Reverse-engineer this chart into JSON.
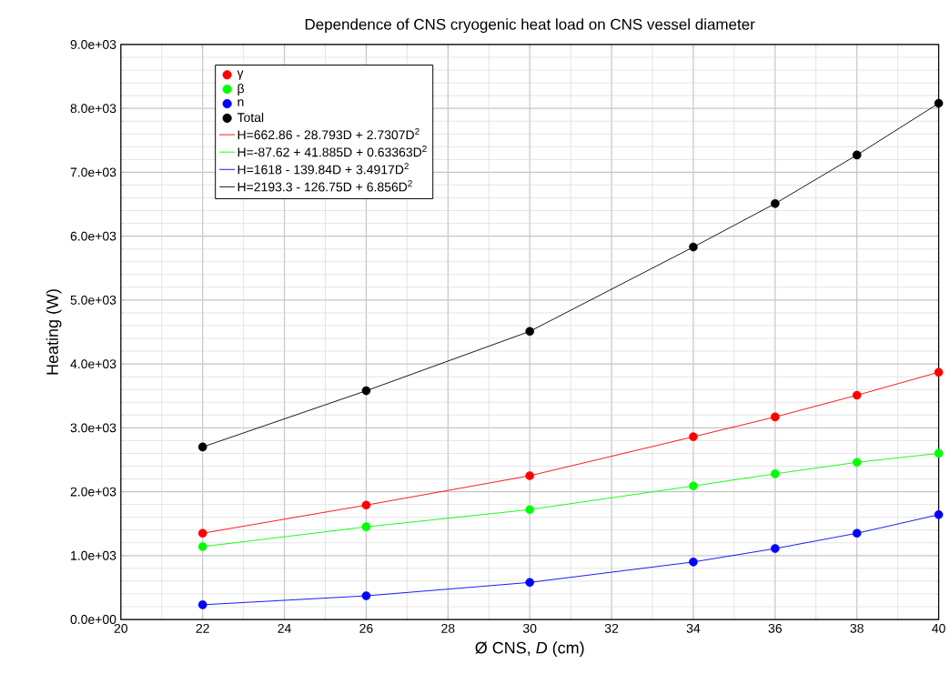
{
  "chart_data": {
    "type": "scatter",
    "title": "Dependence of CNS cryogenic heat load on CNS vessel diameter",
    "xlabel": "Ø CNS, *D* (cm)",
    "ylabel": "Heating (W)",
    "xlim": [
      20,
      40
    ],
    "xticks": [
      20,
      22,
      24,
      26,
      28,
      30,
      32,
      34,
      36,
      38,
      40
    ],
    "ylim": [
      0,
      9000
    ],
    "yticks": [
      {
        "value": 0,
        "label": "0.0e+00"
      },
      {
        "value": 1000,
        "label": "1.0e+03"
      },
      {
        "value": 2000,
        "label": "2.0e+03"
      },
      {
        "value": 3000,
        "label": "3.0e+03"
      },
      {
        "value": 4000,
        "label": "4.0e+03"
      },
      {
        "value": 5000,
        "label": "5.0e+03"
      },
      {
        "value": 6000,
        "label": "6.0e+03"
      },
      {
        "value": 7000,
        "label": "7.0e+03"
      },
      {
        "value": 8000,
        "label": "8.0e+03"
      },
      {
        "value": 9000,
        "label": "9.0e+03"
      }
    ],
    "grid": true,
    "legend": "top left",
    "series": [
      {
        "name": "γ",
        "color": "#ff0000",
        "marker": "circle",
        "x": [
          22,
          26,
          30,
          34,
          36,
          38,
          40
        ],
        "values": [
          1350,
          1790,
          2250,
          2860,
          3170,
          3510,
          3870
        ]
      },
      {
        "name": "β",
        "color": "#00ff00",
        "marker": "circle",
        "x": [
          22,
          26,
          30,
          34,
          36,
          38,
          40
        ],
        "values": [
          1140,
          1450,
          1720,
          2090,
          2280,
          2460,
          2600
        ]
      },
      {
        "name": "n",
        "color": "#0000ff",
        "marker": "circle",
        "x": [
          22,
          26,
          30,
          34,
          36,
          38,
          40
        ],
        "values": [
          230,
          370,
          580,
          900,
          1110,
          1350,
          1640
        ]
      },
      {
        "name": "Total",
        "color": "#000000",
        "marker": "circle",
        "x": [
          22,
          26,
          30,
          34,
          36,
          38,
          40
        ],
        "values": [
          2700,
          3580,
          4510,
          5830,
          6510,
          7270,
          8080
        ]
      },
      {
        "type": "line",
        "marker": "none",
        "name": "H=662.86 - 28.793D + 2.7307D$^{2}$",
        "color": "#ff0000",
        "x": [
          22,
          26,
          30,
          34,
          36,
          38,
          40
        ],
        "values": [
          1350,
          1790,
          2250,
          2860,
          3170,
          3510,
          3870
        ]
      },
      {
        "type": "line",
        "marker": "none",
        "name": "H=-87.62 + 41.885D + 0.63363D$^{2}$",
        "color": "#00ff00",
        "x": [
          22,
          26,
          30,
          34,
          36,
          38,
          40
        ],
        "values": [
          1140,
          1450,
          1720,
          2090,
          2280,
          2460,
          2600
        ]
      },
      {
        "type": "line",
        "marker": "none",
        "name": "H=1618 - 139.84D + 3.4917D$^{2}$",
        "color": "#0000ff",
        "x": [
          22,
          26,
          30,
          34,
          36,
          38,
          40
        ],
        "values": [
          230,
          370,
          580,
          900,
          1110,
          1350,
          1640
        ]
      },
      {
        "type": "line",
        "marker": "none",
        "name": "H=2193.3 - 126.75D + 6.856D$^{2}$",
        "color": "#000000",
        "x": [
          22,
          26,
          30,
          34,
          36,
          38,
          40
        ],
        "values": [
          2700,
          3580,
          4510,
          5830,
          6510,
          7270,
          8080
        ]
      }
    ]
  }
}
